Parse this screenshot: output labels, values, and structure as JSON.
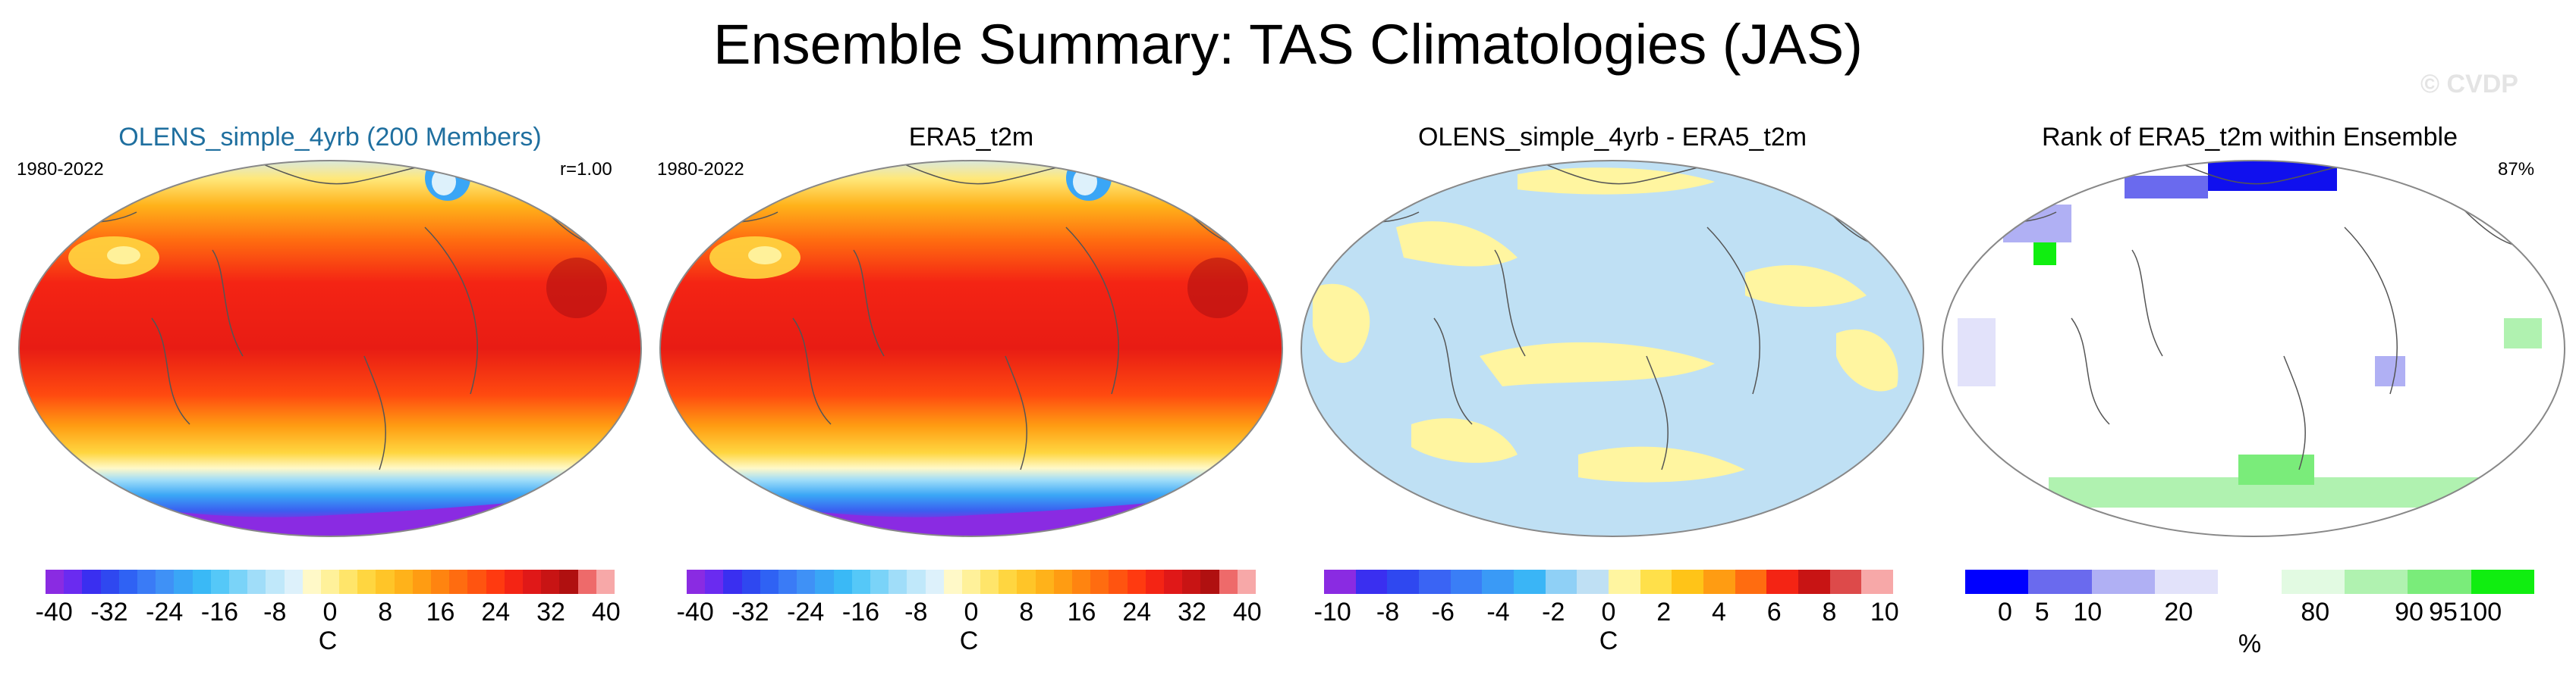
{
  "title": "Ensemble Summary: TAS Climatologies (JAS)",
  "watermark": "© CVDP",
  "colors": {
    "title_blue": "#1f6f9f",
    "land_outline": "#555555",
    "pos_anom": "#fff5a0",
    "neg_anom": "#bfe0f4",
    "rank_high": "#22ee22",
    "rank_low": "#1010ee"
  },
  "chart_data": [
    {
      "type": "heatmap",
      "title": "OLENS_simple_4yrb (200 Members)",
      "period": "1980-2022",
      "stat": "r=1.00",
      "colorbar": {
        "unit": "C",
        "ticks": [
          "-40",
          "-32",
          "-24",
          "-16",
          "-8",
          "0",
          "8",
          "16",
          "24",
          "32",
          "40"
        ],
        "colors": [
          "#8a2be2",
          "#6a2bf0",
          "#3a2ff0",
          "#2f48f0",
          "#2f62f4",
          "#3a7bf6",
          "#3f91f6",
          "#3aa6f6",
          "#3ab9f6",
          "#55c8f8",
          "#7ad3f8",
          "#a0ddf9",
          "#c0e8fa",
          "#ddf1fb",
          "#fff9c8",
          "#fff19a",
          "#ffe56a",
          "#ffd640",
          "#ffc528",
          "#ffb21a",
          "#ff9c12",
          "#ff8410",
          "#ff6c10",
          "#ff5410",
          "#ff3a10",
          "#f42414",
          "#e01818",
          "#c81414",
          "#b01010",
          "#ee6a6a",
          "#f7a8a8"
        ]
      }
    },
    {
      "type": "heatmap",
      "title": "ERA5_t2m",
      "period": "1980-2022",
      "colorbar": {
        "unit": "C",
        "ticks": [
          "-40",
          "-32",
          "-24",
          "-16",
          "-8",
          "0",
          "8",
          "16",
          "24",
          "32",
          "40"
        ],
        "colors": [
          "#8a2be2",
          "#6a2bf0",
          "#3a2ff0",
          "#2f48f0",
          "#2f62f4",
          "#3a7bf6",
          "#3f91f6",
          "#3aa6f6",
          "#3ab9f6",
          "#55c8f8",
          "#7ad3f8",
          "#a0ddf9",
          "#c0e8fa",
          "#ddf1fb",
          "#fff9c8",
          "#fff19a",
          "#ffe56a",
          "#ffd640",
          "#ffc528",
          "#ffb21a",
          "#ff9c12",
          "#ff8410",
          "#ff6c10",
          "#ff5410",
          "#ff3a10",
          "#f42414",
          "#e01818",
          "#c81414",
          "#b01010",
          "#ee6a6a",
          "#f7a8a8"
        ]
      }
    },
    {
      "type": "heatmap",
      "title": "OLENS_simple_4yrb - ERA5_t2m",
      "colorbar": {
        "unit": "C",
        "ticks": [
          "-10",
          "-8",
          "-6",
          "-4",
          "-2",
          "0",
          "2",
          "4",
          "6",
          "8",
          "10"
        ],
        "colors": [
          "#8a2be2",
          "#3a2ff0",
          "#2f48f0",
          "#3a64f4",
          "#3a7ef6",
          "#3a9af6",
          "#3ab5f6",
          "#8fd0f6",
          "#bfe0f4",
          "#fff5a0",
          "#ffe04a",
          "#ffc418",
          "#ff9c12",
          "#ff6c10",
          "#f42414",
          "#c81414",
          "#dd4a4a",
          "#f7a8a8"
        ]
      }
    },
    {
      "type": "heatmap",
      "title": "Rank of ERA5_t2m within Ensemble",
      "stat": "87%",
      "colorbar": {
        "unit": "%",
        "ticks": [
          "0",
          "5",
          "10",
          "20",
          "80",
          "90",
          "95",
          "100"
        ],
        "colors": [
          "#0000ff",
          "#6a6aee",
          "#b0b0f4",
          "#e2e2fa",
          "#ffffff",
          "#e2fae2",
          "#b0f2b0",
          "#7aec7a",
          "#10ee10"
        ]
      }
    }
  ]
}
